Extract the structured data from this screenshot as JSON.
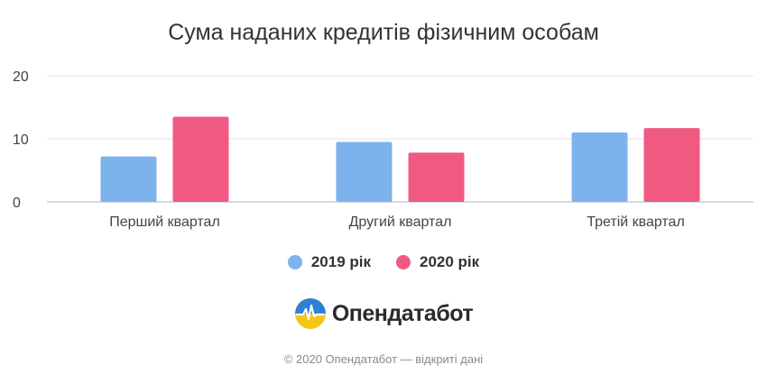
{
  "chart_data": {
    "type": "bar",
    "title": "Сума наданих кредитів фізичним особам",
    "categories": [
      "Перший квартал",
      "Другий квартал",
      "Третій квартал"
    ],
    "series": [
      {
        "name": "2019 рік",
        "values": [
          7.2,
          9.5,
          11.0
        ],
        "color": "#7db3ec"
      },
      {
        "name": "2020 рік",
        "values": [
          13.5,
          7.8,
          11.7
        ],
        "color": "#f05a82"
      }
    ],
    "yticks": [
      0,
      10,
      20
    ],
    "ylim": [
      0,
      20
    ],
    "grid": true,
    "legend_position": "bottom"
  },
  "brand": {
    "name": "Опендатабот"
  },
  "footer": {
    "text": "© 2020 Опендатабот — відкриті дані"
  }
}
